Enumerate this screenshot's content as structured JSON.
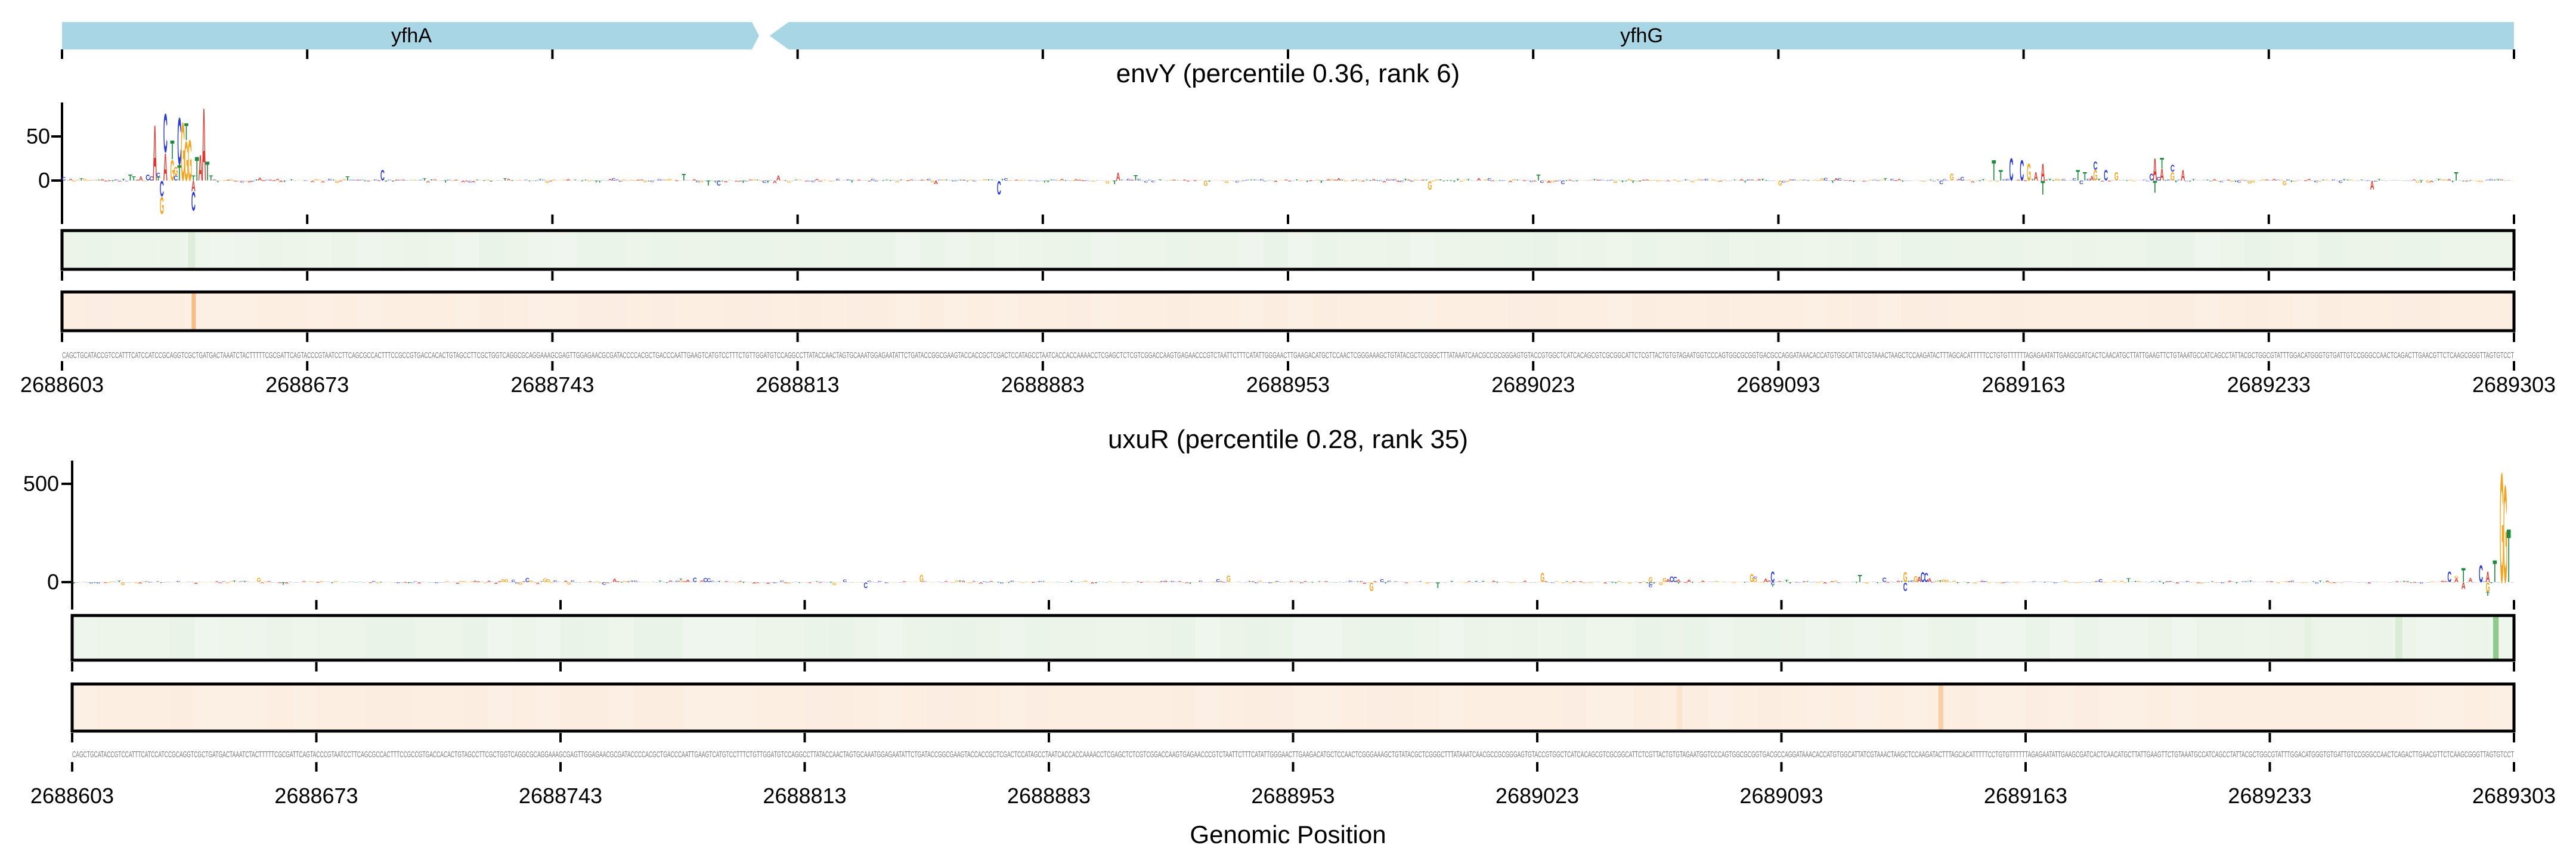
{
  "chart_data": {
    "type": "genome-attribution-logo-tracks",
    "xlabel": "Genomic Position",
    "x_start": 2688603,
    "x_end": 2689303,
    "x_tick_interval": 70,
    "x_ticks": [
      2688603,
      2688673,
      2688743,
      2688813,
      2688883,
      2688953,
      2689023,
      2689093,
      2689163,
      2689233,
      2689303
    ],
    "genes": [
      {
        "label": "yfhA",
        "start": 2688603,
        "end": 2688802,
        "orientation": "none"
      },
      {
        "label": "yfhG",
        "start": 2688805,
        "end": 2689303,
        "orientation": "reverse"
      }
    ],
    "sequence_prefix": "CAGCTGCATACCGTCCATTTCATCCATCCGCAGGTCGCTGATGACTAAATCTACTTTTTCGCGATTCAGTACCCGTAATCCTTCAGCGCCACTTTCCGCCGTGACCACACTGTAGCCTTCGCTGGTCAGGCGCAGG",
    "sequence_length": 700,
    "letter_colors": {
      "A": "#e2352b",
      "C": "#2b3bce",
      "G": "#f5a31c",
      "T": "#1d8a3e"
    },
    "panels": [
      {
        "name": "envY",
        "title": "envY (percentile 0.36, rank 6)",
        "percentile": 0.36,
        "rank": 6,
        "y_ticks": [
          {
            "value": 50,
            "label": "50"
          },
          {
            "value": 0,
            "label": "0"
          }
        ],
        "noise_seed": 20240601,
        "noise_base": 2.2,
        "noise_max": 26,
        "motif_columns": [
          {
            "x": 2688622,
            "up": [
              [
                "T",
                7
              ]
            ]
          },
          {
            "x": 2688623,
            "up": [
              [
                "T",
                5
              ]
            ]
          },
          {
            "x": 2688625,
            "up": [
              [
                "A",
                5
              ]
            ]
          },
          {
            "x": 2688627,
            "up": [
              [
                "C",
                7
              ]
            ]
          },
          {
            "x": 2688628,
            "up": [
              [
                "C",
                5
              ]
            ]
          },
          {
            "x": 2688629,
            "up": [
              [
                "A",
                65
              ]
            ]
          },
          {
            "x": 2688630,
            "up": [
              [
                "T",
                4
              ],
              [
                "C",
                5
              ]
            ]
          },
          {
            "x": 2688631,
            "down": [
              [
                "C",
                18
              ],
              [
                "G",
                20
              ]
            ]
          },
          {
            "x": 2688632,
            "up": [
              [
                "A",
                32
              ],
              [
                "C",
                45
              ]
            ]
          },
          {
            "x": 2688634,
            "up": [
              [
                "G",
                24
              ],
              [
                "T",
                22
              ]
            ]
          },
          {
            "x": 2688635,
            "up": [
              [
                "C",
                6
              ],
              [
                "G",
                10
              ]
            ]
          },
          {
            "x": 2688636,
            "up": [
              [
                "T",
                18
              ],
              [
                "C",
                55
              ]
            ]
          },
          {
            "x": 2688637,
            "up": [
              [
                "G",
                68
              ]
            ]
          },
          {
            "x": 2688638,
            "up": [
              [
                "G",
                46
              ],
              [
                "T",
                20
              ]
            ]
          },
          {
            "x": 2688639,
            "up": [
              [
                "G",
                48
              ]
            ]
          },
          {
            "x": 2688640,
            "up": [
              [
                "T",
                6
              ]
            ],
            "down": [
              [
                "A",
                12
              ],
              [
                "C",
                22
              ]
            ]
          },
          {
            "x": 2688641,
            "up": [
              [
                "T",
                28
              ]
            ]
          },
          {
            "x": 2688642,
            "up": [
              [
                "A",
                30
              ]
            ]
          },
          {
            "x": 2688643,
            "up": [
              [
                "A",
                85
              ]
            ]
          },
          {
            "x": 2688644,
            "up": [
              [
                "T",
                22
              ]
            ]
          },
          {
            "x": 2688645,
            "up": [
              [
                "T",
                6
              ]
            ]
          },
          {
            "x": 2689154,
            "up": [
              [
                "T",
                24
              ]
            ]
          },
          {
            "x": 2689156,
            "up": [
              [
                "T",
                12
              ]
            ]
          },
          {
            "x": 2689159,
            "up": [
              [
                "C",
                26
              ]
            ]
          },
          {
            "x": 2689162,
            "up": [
              [
                "C",
                24
              ]
            ]
          },
          {
            "x": 2689164,
            "up": [
              [
                "G",
                20
              ]
            ]
          },
          {
            "x": 2689166,
            "up": [
              [
                "A",
                10
              ]
            ]
          },
          {
            "x": 2689168,
            "up": [
              [
                "A",
                20
              ]
            ],
            "down": [
              [
                "T",
                16
              ]
            ]
          },
          {
            "x": 2689178,
            "up": [
              [
                "T",
                12
              ]
            ]
          },
          {
            "x": 2689180,
            "up": [
              [
                "T",
                10
              ]
            ]
          },
          {
            "x": 2689183,
            "up": [
              [
                "G",
                12
              ],
              [
                "C",
                10
              ]
            ]
          },
          {
            "x": 2689186,
            "up": [
              [
                "C",
                12
              ]
            ]
          },
          {
            "x": 2689189,
            "up": [
              [
                "G",
                10
              ]
            ]
          },
          {
            "x": 2689199,
            "up": [
              [
                "C",
                8
              ]
            ]
          },
          {
            "x": 2689200,
            "up": [
              [
                "A",
                26
              ]
            ],
            "down": [
              [
                "T",
                14
              ]
            ]
          },
          {
            "x": 2689202,
            "up": [
              [
                "A",
                14
              ],
              [
                "T",
                12
              ]
            ]
          },
          {
            "x": 2689205,
            "up": [
              [
                "G",
                10
              ],
              [
                "C",
                8
              ]
            ]
          },
          {
            "x": 2689208,
            "up": [
              [
                "A",
                12
              ]
            ]
          }
        ],
        "green_strip_bands": [
          {
            "x": 2688639,
            "color": "#cfe6c8",
            "opacity": 0.55,
            "width_bp": 2
          }
        ],
        "orange_strip_bands": [
          {
            "x": 2688640,
            "color": "#f8bd84",
            "opacity": 1,
            "width_bp": 1.2
          }
        ]
      },
      {
        "name": "uxuR",
        "title": "uxuR (percentile 0.28, rank 35)",
        "percentile": 0.28,
        "rank": 35,
        "y_ticks": [
          {
            "value": 500,
            "label": "500"
          },
          {
            "value": 0,
            "label": "0"
          }
        ],
        "noise_seed": 77001,
        "noise_base": 7,
        "noise_max": 58,
        "motif_columns": [
          {
            "x": 2688726,
            "up": [
              [
                "G",
                16
              ]
            ]
          },
          {
            "x": 2688727,
            "up": [
              [
                "G",
                15
              ]
            ]
          },
          {
            "x": 2688729,
            "up": [
              [
                "C",
                12
              ]
            ]
          },
          {
            "x": 2688731,
            "down": [
              [
                "G",
                14
              ]
            ]
          },
          {
            "x": 2688733,
            "up": [
              [
                "C",
                22
              ]
            ]
          },
          {
            "x": 2688734,
            "up": [
              [
                "G",
                10
              ]
            ]
          },
          {
            "x": 2688736,
            "down": [
              [
                "A",
                10
              ]
            ]
          },
          {
            "x": 2688738,
            "up": [
              [
                "G",
                18
              ]
            ]
          },
          {
            "x": 2688739,
            "up": [
              [
                "G",
                16
              ]
            ]
          },
          {
            "x": 2688741,
            "up": [
              [
                "C",
                10
              ]
            ]
          },
          {
            "x": 2688744,
            "up": [
              [
                "A",
                8
              ]
            ]
          },
          {
            "x": 2688745,
            "down": [
              [
                "G",
                12
              ]
            ]
          },
          {
            "x": 2688746,
            "up": [
              [
                "C",
                10
              ]
            ]
          },
          {
            "x": 2688774,
            "up": [
              [
                "A",
                10
              ]
            ]
          },
          {
            "x": 2688776,
            "up": [
              [
                "C",
                8
              ]
            ]
          },
          {
            "x": 2688777,
            "up": [
              [
                "G",
                10
              ],
              [
                "T",
                8
              ]
            ]
          },
          {
            "x": 2688779,
            "up": [
              [
                "A",
                12
              ]
            ]
          },
          {
            "x": 2688781,
            "up": [
              [
                "C",
                24
              ]
            ]
          },
          {
            "x": 2688783,
            "up": [
              [
                "A",
                10
              ]
            ]
          },
          {
            "x": 2688784,
            "up": [
              [
                "C",
                22
              ]
            ]
          },
          {
            "x": 2688785,
            "up": [
              [
                "C",
                20
              ]
            ]
          },
          {
            "x": 2689055,
            "up": [
              [
                "G",
                26
              ]
            ],
            "down": [
              [
                "C",
                14
              ],
              [
                "C",
                12
              ]
            ]
          },
          {
            "x": 2689059,
            "up": [
              [
                "G",
                22
              ]
            ]
          },
          {
            "x": 2689060,
            "up": [
              [
                "A",
                16
              ]
            ]
          },
          {
            "x": 2689061,
            "up": [
              [
                "C",
                30
              ]
            ]
          },
          {
            "x": 2689062,
            "up": [
              [
                "C",
                28
              ]
            ]
          },
          {
            "x": 2689063,
            "up": [
              [
                "A",
                14
              ]
            ],
            "down": [
              [
                "T",
                8
              ]
            ]
          },
          {
            "x": 2689084,
            "up": [
              [
                "G",
                42
              ]
            ]
          },
          {
            "x": 2689085,
            "up": [
              [
                "G",
                20
              ],
              [
                "C",
                10
              ]
            ]
          },
          {
            "x": 2689088,
            "up": [
              [
                "A",
                18
              ]
            ]
          },
          {
            "x": 2689089,
            "up": [
              [
                "A",
                10
              ]
            ]
          },
          {
            "x": 2689090,
            "up": [
              [
                "C",
                55
              ]
            ],
            "down": [
              [
                "C",
                12
              ],
              [
                "T",
                10
              ]
            ]
          },
          {
            "x": 2689128,
            "up": [
              [
                "G",
                52
              ]
            ],
            "down": [
              [
                "C",
                45
              ]
            ]
          },
          {
            "x": 2689130,
            "up": [
              [
                "C",
                10
              ]
            ]
          },
          {
            "x": 2689131,
            "up": [
              [
                "G",
                33
              ]
            ]
          },
          {
            "x": 2689132,
            "up": [
              [
                "A",
                28
              ]
            ]
          },
          {
            "x": 2689133,
            "up": [
              [
                "C",
                52
              ]
            ]
          },
          {
            "x": 2689134,
            "up": [
              [
                "C",
                48
              ]
            ]
          },
          {
            "x": 2689135,
            "up": [
              [
                "A",
                20
              ]
            ]
          },
          {
            "x": 2689139,
            "up": [
              [
                "G",
                14
              ]
            ]
          },
          {
            "x": 2689140,
            "up": [
              [
                "G",
                12
              ]
            ]
          },
          {
            "x": 2689284,
            "up": [
              [
                "C",
                55
              ]
            ]
          },
          {
            "x": 2689286,
            "up": [
              [
                "A",
                20
              ],
              [
                "G",
                12
              ]
            ]
          },
          {
            "x": 2689288,
            "up": [
              [
                "T",
                75
              ]
            ],
            "down": [
              [
                "A",
                35
              ]
            ]
          },
          {
            "x": 2689290,
            "up": [
              [
                "A",
                22
              ]
            ]
          },
          {
            "x": 2689293,
            "up": [
              [
                "C",
                88
              ]
            ]
          },
          {
            "x": 2689295,
            "up": [
              [
                "A",
                55
              ]
            ],
            "down": [
              [
                "G",
                50
              ],
              [
                "T",
                20
              ]
            ]
          },
          {
            "x": 2689297,
            "up": [
              [
                "T",
                115
              ]
            ]
          },
          {
            "x": 2689299,
            "up": [
              [
                "G",
                575
              ]
            ]
          },
          {
            "x": 2689300,
            "up": [
              [
                "G",
                510
              ]
            ]
          },
          {
            "x": 2689301,
            "up": [
              [
                "T",
                280
              ]
            ]
          }
        ],
        "green_strip_bands": [
          {
            "x": 2689297,
            "color": "#8fca8f",
            "opacity": 1,
            "width_bp": 1.6
          },
          {
            "x": 2689269,
            "color": "#cfe6c8",
            "opacity": 0.6,
            "width_bp": 2
          },
          {
            "x": 2689243,
            "color": "#dfeeda",
            "opacity": 0.5,
            "width_bp": 2
          }
        ],
        "orange_strip_bands": [
          {
            "x": 2689138,
            "color": "#f8c896",
            "opacity": 0.8,
            "width_bp": 1.4
          },
          {
            "x": 2689063,
            "color": "#f8d4ab",
            "opacity": 0.35,
            "width_bp": 1.6
          }
        ]
      }
    ]
  },
  "styles": {
    "gene_bar_color": "#a9d6e5",
    "strip_green_bg": "#eff6ed",
    "strip_orange_bg": "#fcf0e4",
    "strip_border": "#000000",
    "sequence_text_color": "#7a7a7a",
    "axis_color": "#000000"
  }
}
